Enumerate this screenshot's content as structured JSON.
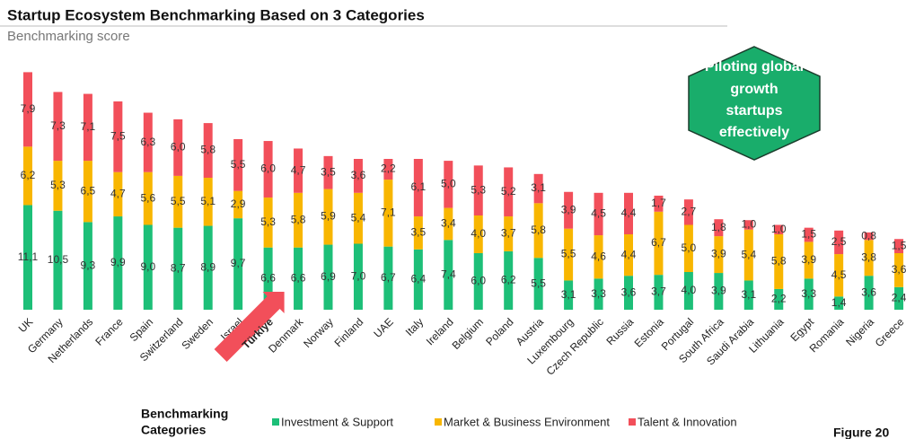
{
  "chart_data": {
    "type": "stacked_bar",
    "title": "Startup Ecosystem Benchmarking Based on 3 Categories",
    "subtitle": "Benchmarking score",
    "callout": [
      "Piloting global",
      "growth",
      "startups",
      "effectively"
    ],
    "legend_title": [
      "Benchmarking",
      "Categories"
    ],
    "figure_label": "Figure 20",
    "highlight": "Türkiye",
    "categories": [
      "UK",
      "Germany",
      "Netherlands",
      "France",
      "Spain",
      "Switzerland",
      "Sweden",
      "Israel",
      "Türkiye",
      "Denmark",
      "Norway",
      "Finland",
      "UAE",
      "Italy",
      "Ireland",
      "Belgium",
      "Poland",
      "Austria",
      "Luxembourg",
      "Czech Republic",
      "Russia",
      "Estonia",
      "Portugal",
      "South Africa",
      "Saudi Arabia",
      "Lithuania",
      "Egypt",
      "Romania",
      "Nigeria",
      "Greece"
    ],
    "series": [
      {
        "name": "Investment & Support",
        "color": "#1dbf78",
        "values": [
          11.1,
          10.5,
          9.3,
          9.9,
          9.0,
          8.7,
          8.9,
          9.7,
          6.6,
          6.6,
          6.9,
          7.0,
          6.7,
          6.4,
          7.4,
          6.0,
          6.2,
          5.5,
          3.1,
          3.3,
          3.6,
          3.7,
          4.0,
          3.9,
          3.1,
          2.2,
          3.3,
          1.4,
          3.6,
          2.4
        ],
        "value_labels": [
          "11,1",
          "10,5",
          "9,3",
          "9,9",
          "9,0",
          "8,7",
          "8,9",
          "9,7",
          "6,6",
          "6,6",
          "6,9",
          "7,0",
          "6,7",
          "6,4",
          "7,4",
          "6,0",
          "6,2",
          "5,5",
          "3,1",
          "3,3",
          "3,6",
          "3,7",
          "4,0",
          "3,9",
          "3,1",
          "2,2",
          "3,3",
          "1,4",
          "3,6",
          "2,4"
        ]
      },
      {
        "name": "Market & Business Environment",
        "color": "#f8b600",
        "values": [
          6.2,
          5.3,
          6.5,
          4.7,
          5.6,
          5.5,
          5.1,
          2.9,
          5.3,
          5.8,
          5.9,
          5.4,
          7.1,
          3.5,
          3.4,
          4.0,
          3.7,
          5.8,
          5.5,
          4.6,
          4.4,
          6.7,
          5.0,
          3.9,
          5.4,
          5.8,
          3.9,
          4.5,
          3.8,
          3.6
        ],
        "value_labels": [
          "6,2",
          "5,3",
          "6,5",
          "4,7",
          "5,6",
          "5,5",
          "5,1",
          "2,9",
          "5,3",
          "5,8",
          "5,9",
          "5,4",
          "7,1",
          "3,5",
          "3,4",
          "4,0",
          "3,7",
          "5,8",
          "5,5",
          "4,6",
          "4,4",
          "6,7",
          "5,0",
          "3,9",
          "5,4",
          "5,8",
          "3,9",
          "4,5",
          "3,8",
          "3,6"
        ]
      },
      {
        "name": "Talent & Innovation",
        "color": "#f24f5a",
        "values": [
          7.9,
          7.3,
          7.1,
          7.5,
          6.3,
          6.0,
          5.8,
          5.5,
          6.0,
          4.7,
          3.5,
          3.6,
          2.2,
          6.1,
          5.0,
          5.3,
          5.2,
          3.1,
          3.9,
          4.5,
          4.4,
          1.7,
          2.7,
          1.8,
          1.0,
          1.0,
          1.5,
          2.5,
          0.8,
          1.5
        ],
        "value_labels": [
          "7,9",
          "7,3",
          "7,1",
          "7,5",
          "6,3",
          "6,0",
          "5,8",
          "5,5",
          "6,0",
          "4,7",
          "3,5",
          "3,6",
          "2,2",
          "6,1",
          "5,0",
          "5,3",
          "5,2",
          "3,1",
          "3,9",
          "4,5",
          "4,4",
          "1,7",
          "2,7",
          "1,8",
          "1,0",
          "1,0",
          "1,5",
          "2,5",
          "0,8",
          "1,5"
        ]
      }
    ]
  }
}
